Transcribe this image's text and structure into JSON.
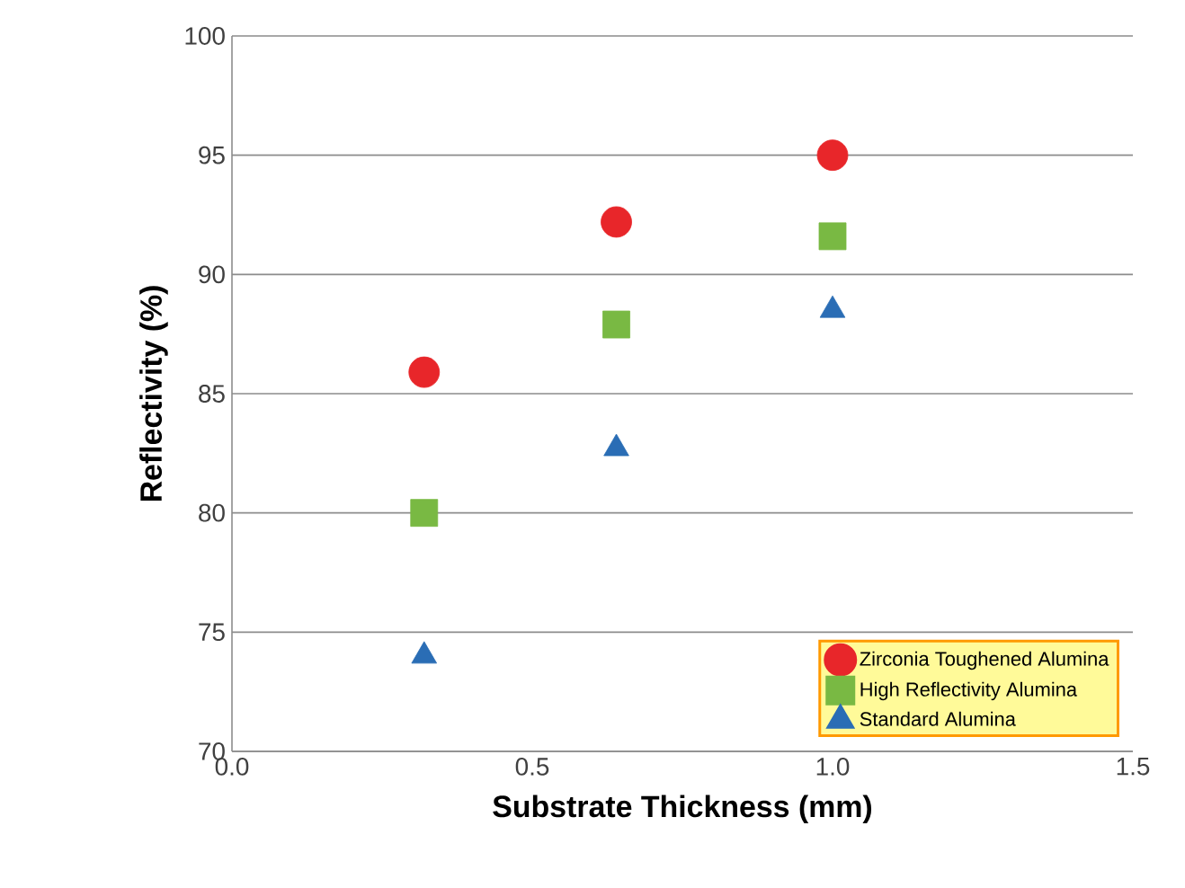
{
  "chart_data": {
    "type": "scatter",
    "xlabel": "Substrate Thickness (mm)",
    "ylabel": "Reflectivity (%)",
    "x": [
      0.32,
      0.64,
      1.0
    ],
    "series": [
      {
        "name": "Zirconia Toughened Alumina",
        "color": "#e8262a",
        "marker": "circle",
        "values": [
          85.9,
          92.2,
          95.0
        ]
      },
      {
        "name": "High Reflectivity Alumina",
        "color": "#79b943",
        "marker": "square",
        "values": [
          80.0,
          87.9,
          91.6
        ]
      },
      {
        "name": "Standard Alumina",
        "color": "#2a6db5",
        "marker": "triangle",
        "values": [
          74.0,
          82.7,
          88.5
        ]
      }
    ],
    "xlim": [
      0,
      1.5
    ],
    "xticks": [
      {
        "value": 0,
        "label": "0.0"
      },
      0.5,
      {
        "value": 1,
        "label": "1.0"
      },
      1.5
    ],
    "ylim": [
      70,
      100
    ],
    "yticks": [
      70,
      75,
      80,
      85,
      90,
      95,
      100
    ],
    "grid": "y",
    "legend": "bottom right"
  }
}
